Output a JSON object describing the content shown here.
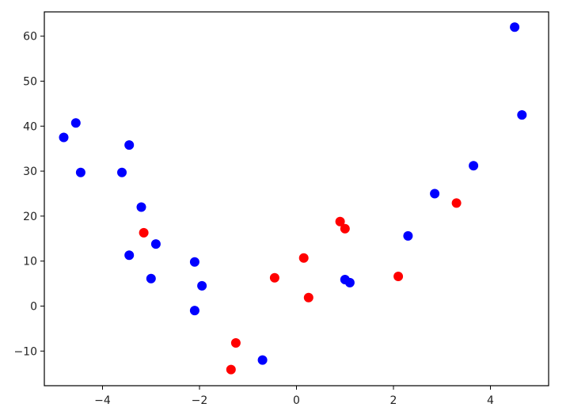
{
  "chart_data": {
    "type": "scatter",
    "title": "",
    "xlabel": "",
    "ylabel": "",
    "xlim": [
      -5.2,
      5.2
    ],
    "ylim": [
      -17.7,
      65.4
    ],
    "xticks": [
      -4,
      -2,
      0,
      2,
      4
    ],
    "yticks": [
      -10,
      0,
      10,
      20,
      30,
      40,
      50,
      60
    ],
    "xtick_labels": [
      "−4",
      "−2",
      "0",
      "2",
      "4"
    ],
    "ytick_labels": [
      "−10",
      "0",
      "10",
      "20",
      "30",
      "40",
      "50",
      "60"
    ],
    "grid": false,
    "legend": "none",
    "series": [
      {
        "color": "#0000ff",
        "points": [
          [
            -4.8,
            37.5
          ],
          [
            -4.55,
            40.7
          ],
          [
            -4.45,
            29.7
          ],
          [
            -3.6,
            29.7
          ],
          [
            -3.45,
            35.8
          ],
          [
            -3.2,
            22.0
          ],
          [
            -3.45,
            11.3
          ],
          [
            -2.9,
            13.8
          ],
          [
            -3.0,
            6.1
          ],
          [
            -2.1,
            9.8
          ],
          [
            -2.1,
            -1.0
          ],
          [
            -1.95,
            4.5
          ],
          [
            -0.7,
            -12.0
          ],
          [
            1.0,
            5.9
          ],
          [
            1.1,
            5.2
          ],
          [
            2.3,
            15.6
          ],
          [
            2.85,
            25.0
          ],
          [
            3.65,
            31.2
          ],
          [
            4.5,
            62.0
          ],
          [
            4.65,
            42.5
          ]
        ]
      },
      {
        "color": "#ff0000",
        "points": [
          [
            -3.15,
            16.3
          ],
          [
            -1.25,
            -8.2
          ],
          [
            -1.35,
            -14.1
          ],
          [
            -0.45,
            6.3
          ],
          [
            0.15,
            10.7
          ],
          [
            0.25,
            1.9
          ],
          [
            0.9,
            18.8
          ],
          [
            1.0,
            17.2
          ],
          [
            2.1,
            6.6
          ],
          [
            3.3,
            22.9
          ]
        ]
      }
    ]
  }
}
